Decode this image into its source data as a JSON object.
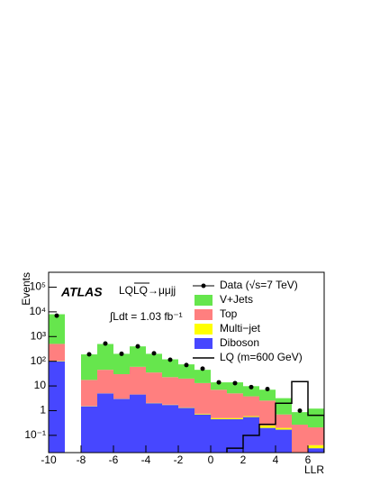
{
  "chart_data": {
    "type": "histogram",
    "xlabel": "LLR",
    "ylabel": "Events",
    "annotations": {
      "experiment": "ATLAS",
      "process": "LQLQ→μμjj",
      "lumi": "∫Ldt = 1.03 fb⁻¹"
    },
    "bins": [
      -10,
      -9,
      -8,
      -7,
      -6,
      -5,
      -4,
      -3,
      -2,
      -1,
      0,
      1,
      2,
      3,
      4,
      5,
      6,
      7
    ],
    "xlim": [
      -10,
      7
    ],
    "xticks": [
      -10,
      -8,
      -6,
      -4,
      -2,
      0,
      2,
      4,
      6
    ],
    "ylim": [
      0.02,
      400000
    ],
    "log_y": true,
    "yticks": [
      {
        "value": 0.1,
        "label": "10⁻¹"
      },
      1,
      10,
      {
        "value": 100,
        "label": "10²"
      },
      {
        "value": 1000,
        "label": "10³"
      },
      {
        "value": 10000,
        "label": "10⁴"
      },
      {
        "value": 100000,
        "label": "10⁵"
      }
    ],
    "legend": "upper right",
    "series": [
      {
        "name": "Diboson",
        "color": "#4747ff",
        "values": [
          100,
          null,
          1.5,
          5,
          3,
          4.5,
          2,
          1.7,
          1.3,
          0.7,
          0.45,
          0.45,
          0.55,
          0.2,
          0.17,
          0.01,
          0.03
        ]
      },
      {
        "name": "Multi−jet",
        "color": "#ffff00",
        "values": [
          5,
          null,
          0.05,
          0.05,
          0.05,
          0.05,
          0.05,
          0.05,
          0.05,
          0.05,
          0.05,
          0.05,
          0.05,
          0.05,
          0.03,
          0.01,
          0.01
        ]
      },
      {
        "name": "Top",
        "color": "#ff7f7f",
        "values": [
          400,
          null,
          16,
          40,
          27,
          55,
          33,
          21,
          18.5,
          12.3,
          6.5,
          4.5,
          3.2,
          2.3,
          0.5,
          0.25,
          0.17
        ]
      },
      {
        "name": "V+Jets",
        "color": "#66e64d",
        "values": [
          7500,
          null,
          172,
          455,
          170,
          340,
          165,
          97,
          55,
          32,
          7,
          9,
          6,
          4.5,
          2.5,
          0.6,
          1
        ]
      }
    ],
    "data": {
      "name": "Data (√s=7 TeV)",
      "color": "#000000",
      "values": [
        7000,
        null,
        190,
        520,
        200,
        400,
        210,
        115,
        70,
        50,
        14,
        13,
        9,
        7.5,
        null,
        1,
        null
      ]
    },
    "signal": {
      "name": "LQ (m=600 GeV)",
      "color": "#000000",
      "values": [
        null,
        null,
        null,
        null,
        null,
        null,
        null,
        null,
        null,
        null,
        null,
        0.03,
        0.1,
        0.28,
        2,
        15,
        0.65
      ]
    }
  }
}
